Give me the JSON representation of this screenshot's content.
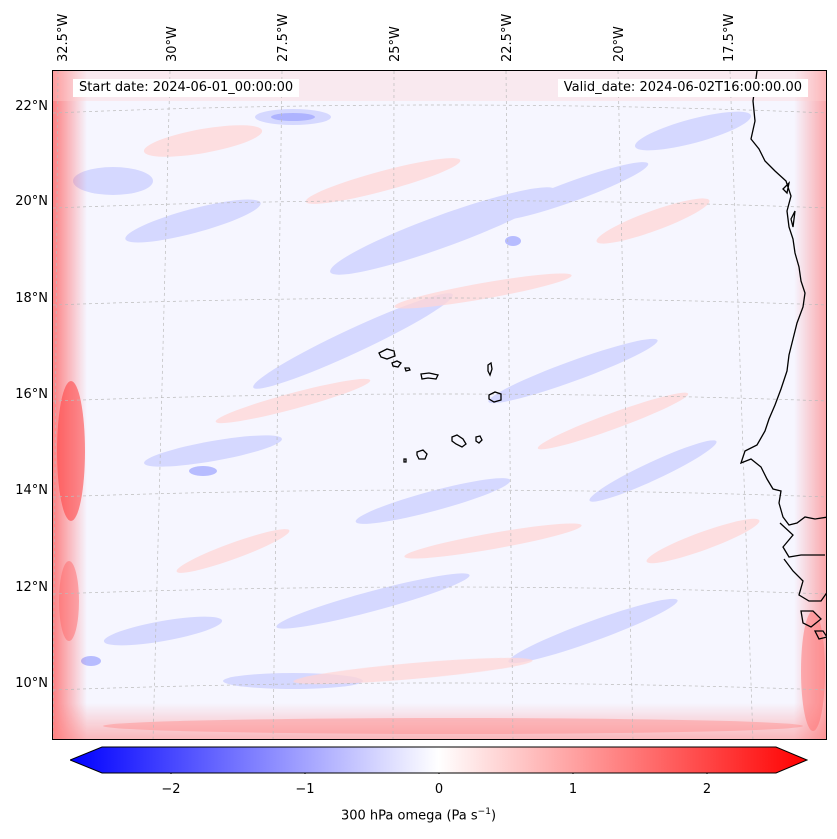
{
  "header": {
    "start_date": "Start date: 2024-06-01_00:00:00",
    "valid_date": "Valid_date: 2024-06-02T16:00:00.00"
  },
  "axes": {
    "longitude_labels": [
      "32.5°W",
      "30°W",
      "27.5°W",
      "25°W",
      "22.5°W",
      "20°W",
      "17.5°W"
    ],
    "latitude_labels": [
      "22°N",
      "20°N",
      "18°N",
      "16°N",
      "14°N",
      "12°N",
      "10°N"
    ]
  },
  "colorbar": {
    "ticks": [
      "−2",
      "−1",
      "0",
      "1",
      "2"
    ],
    "range": [
      -2.7,
      2.7
    ],
    "label_text": "300 hPa omega (Pa s",
    "label_sup": "−1",
    "label_close": ")",
    "cmap": "bwr",
    "colors": {
      "negative": "#0000ff",
      "zero": "#ffffff",
      "positive": "#ff0000"
    }
  },
  "map": {
    "field": "300 hPa omega",
    "coastline_color": "#000000",
    "gridline_color": "#bbbbbb",
    "features": [
      "cape-verde-islands",
      "west-african-coast"
    ]
  }
}
